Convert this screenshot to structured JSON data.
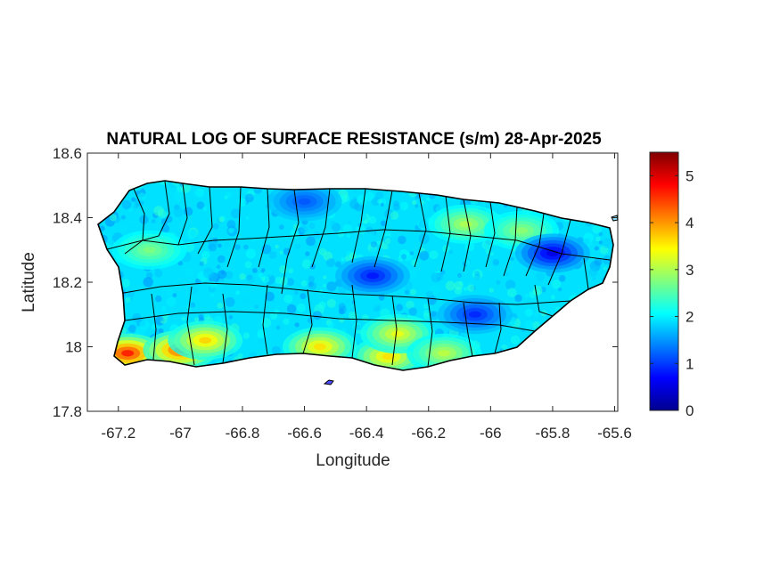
{
  "chart_data": {
    "type": "heatmap",
    "title": "NATURAL LOG OF SURFACE RESISTANCE (s/m) 28-Apr-2025",
    "xlabel": "Longitude",
    "ylabel": "Latitude",
    "xlim": [
      -67.3,
      -65.59
    ],
    "ylim": [
      17.8,
      18.6
    ],
    "xticks": [
      -67.2,
      -67,
      -66.8,
      -66.6,
      -66.4,
      -66.2,
      -66,
      -65.8,
      -65.6
    ],
    "xtick_labels": [
      "-67.2",
      "-67",
      "-66.8",
      "-66.6",
      "-66.4",
      "-66.2",
      "-66",
      "-65.8",
      "-65.6"
    ],
    "yticks": [
      17.8,
      18,
      18.2,
      18.4,
      18.6
    ],
    "ytick_labels": [
      "17.8",
      "18",
      "18.2",
      "18.4",
      "18.6"
    ],
    "colorbar": {
      "colormap": "jet",
      "range": [
        0,
        5.5
      ],
      "ticks": [
        0,
        1,
        2,
        3,
        4,
        5
      ],
      "tick_labels": [
        "0",
        "1",
        "2",
        "3",
        "4",
        "5"
      ]
    },
    "background_level": 1.9,
    "features": [
      {
        "lon": -67.17,
        "lat": 17.98,
        "value": 5.2
      },
      {
        "lon": -67.0,
        "lat": 17.99,
        "value": 4.9
      },
      {
        "lon": -66.92,
        "lat": 18.02,
        "value": 4.0
      },
      {
        "lon": -66.55,
        "lat": 18.0,
        "value": 3.9
      },
      {
        "lon": -66.33,
        "lat": 17.97,
        "value": 3.9
      },
      {
        "lon": -66.3,
        "lat": 18.04,
        "value": 3.6
      },
      {
        "lon": -66.15,
        "lat": 17.98,
        "value": 3.3
      },
      {
        "lon": -66.08,
        "lat": 18.38,
        "value": 3.2
      },
      {
        "lon": -65.9,
        "lat": 18.36,
        "value": 3.0
      },
      {
        "lon": -67.1,
        "lat": 18.3,
        "value": 2.9
      },
      {
        "lon": -66.38,
        "lat": 18.22,
        "value": 0.6
      },
      {
        "lon": -65.8,
        "lat": 18.29,
        "value": 0.3
      },
      {
        "lon": -66.05,
        "lat": 18.1,
        "value": 0.7
      },
      {
        "lon": -66.6,
        "lat": 18.45,
        "value": 1.0
      }
    ]
  }
}
